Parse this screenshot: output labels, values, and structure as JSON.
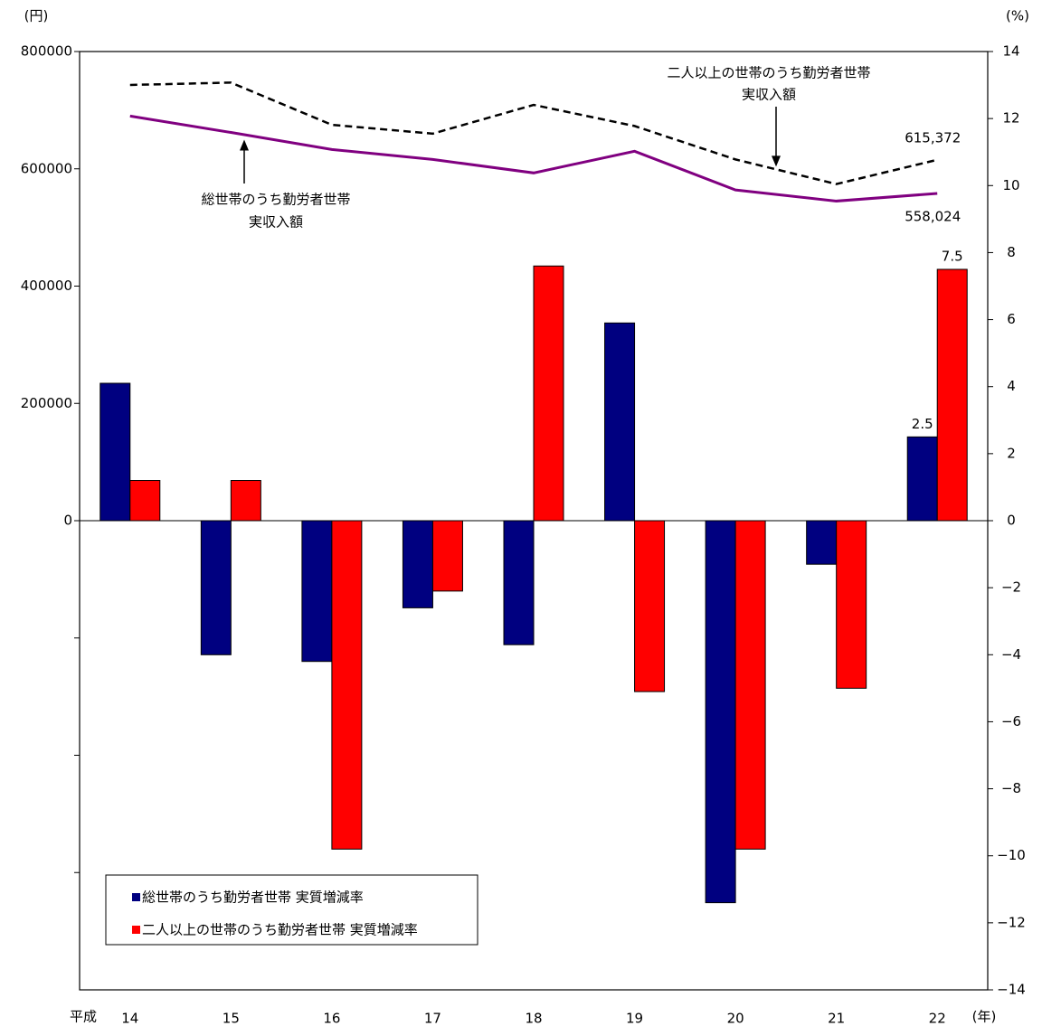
{
  "chart_data": {
    "type": "bar",
    "y_unit": "(円)",
    "y2_unit": "(%)",
    "x_prefix": "平成",
    "x_unit": "(年)",
    "categories": [
      "14",
      "15",
      "16",
      "17",
      "18",
      "19",
      "20",
      "21",
      "22"
    ],
    "series": [
      {
        "name": "総世帯のうち勤労者世帯 実質増減率",
        "type": "bar",
        "axis": "y2",
        "color": "#000080",
        "values": [
          4.1,
          -4.0,
          -4.2,
          -2.6,
          -3.7,
          5.9,
          -11.4,
          -1.3,
          2.5
        ],
        "value_labels": [
          null,
          null,
          null,
          null,
          null,
          null,
          null,
          null,
          "2.5"
        ]
      },
      {
        "name": "二人以上の世帯のうち勤労者世帯 実質増減率",
        "type": "bar",
        "axis": "y2",
        "color": "#ff0000",
        "values": [
          1.2,
          1.2,
          -9.8,
          -2.1,
          7.6,
          -5.1,
          -9.8,
          -5.0,
          7.5
        ],
        "value_labels": [
          null,
          null,
          null,
          null,
          null,
          null,
          null,
          null,
          "7.5"
        ]
      },
      {
        "type": "line",
        "axis": "y",
        "color": "#800080",
        "dash": false,
        "values": [
          690000,
          662000,
          633000,
          616000,
          593000,
          630000,
          564000,
          545000,
          558024
        ],
        "value_labels": [
          null,
          null,
          null,
          null,
          null,
          null,
          null,
          null,
          "558,024"
        ]
      },
      {
        "type": "line",
        "axis": "y",
        "color": "#000000",
        "dash": true,
        "values": [
          743000,
          747000,
          675000,
          660000,
          709000,
          673000,
          616000,
          574000,
          615372
        ],
        "value_labels": [
          null,
          null,
          null,
          null,
          null,
          null,
          null,
          null,
          "615,372"
        ]
      }
    ],
    "annotations": [
      {
        "lines": [
          "総世帯のうち勤労者世帯",
          "実収入額"
        ],
        "series": 2,
        "index": 1
      },
      {
        "lines": [
          "二人以上の世帯のうち勤労者世帯",
          "実収入額"
        ],
        "series": 3,
        "index": 6
      }
    ],
    "ylim": [
      -800000,
      800000
    ],
    "yticks": [
      0,
      200000,
      400000,
      600000,
      800000
    ],
    "yminor_ticks": [
      -600000,
      -400000,
      -200000
    ],
    "y2lim": [
      -14,
      14
    ],
    "y2ticks": [
      -14,
      -12,
      -10,
      -8,
      -6,
      -4,
      -2,
      0,
      2,
      4,
      6,
      8,
      10,
      12,
      14
    ]
  }
}
